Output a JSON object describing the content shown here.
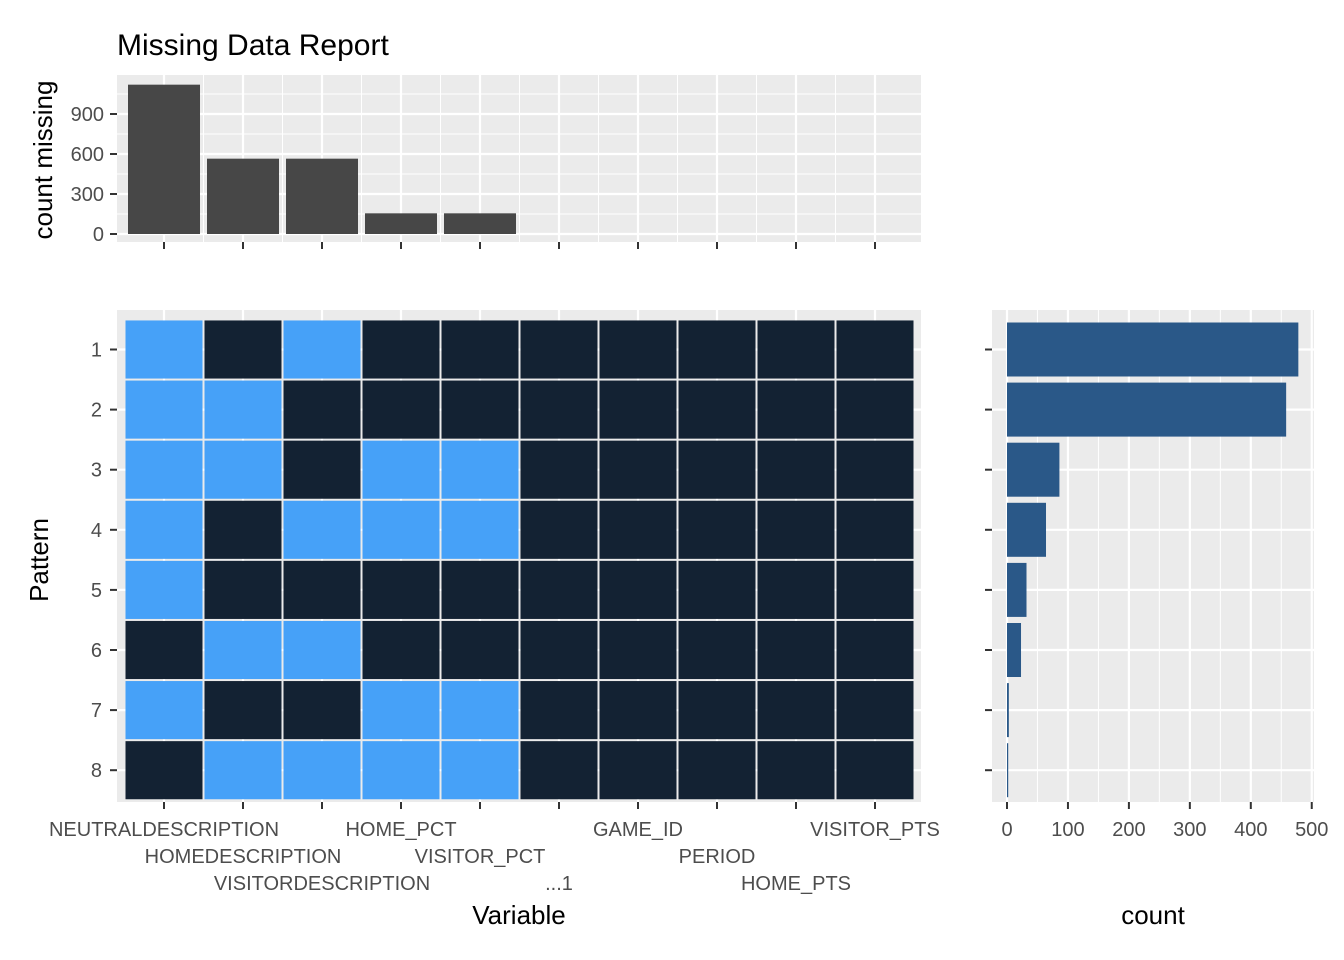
{
  "chart_data": {
    "title": "Missing Data Report",
    "variables": [
      "NEUTRALDESCRIPTION",
      "HOMEDESCRIPTION",
      "VISITORDESCRIPTION",
      "HOME_PCT",
      "VISITOR_PCT",
      "...1",
      "GAME_ID",
      "PERIOD",
      "HOME_PTS",
      "VISITOR_PTS"
    ],
    "colors": {
      "panel": "#ebebeb",
      "grid": "#ffffff",
      "bar_missing": "#474747",
      "tile_missing": "#46a1f8",
      "tile_present": "#132233",
      "pattern_bar": "#2a5888"
    },
    "missing_counts": {
      "type": "bar",
      "ylabel": "count missing",
      "yticks": [
        0,
        300,
        600,
        900
      ],
      "ylim": [
        0,
        1130
      ],
      "values": [
        1120,
        565,
        565,
        155,
        155,
        0,
        0,
        0,
        0,
        0
      ]
    },
    "patterns": {
      "type": "heatmap",
      "xlabel": "Variable",
      "ylabel": "Pattern",
      "pattern_labels": [
        "1",
        "2",
        "3",
        "4",
        "5",
        "6",
        "7",
        "8"
      ],
      "matrix": [
        [
          1,
          0,
          1,
          0,
          0,
          0,
          0,
          0,
          0,
          0
        ],
        [
          1,
          1,
          0,
          0,
          0,
          0,
          0,
          0,
          0,
          0
        ],
        [
          1,
          1,
          0,
          1,
          1,
          0,
          0,
          0,
          0,
          0
        ],
        [
          1,
          0,
          1,
          1,
          1,
          0,
          0,
          0,
          0,
          0
        ],
        [
          1,
          0,
          0,
          0,
          0,
          0,
          0,
          0,
          0,
          0
        ],
        [
          0,
          1,
          1,
          0,
          0,
          0,
          0,
          0,
          0,
          0
        ],
        [
          1,
          0,
          0,
          1,
          1,
          0,
          0,
          0,
          0,
          0
        ],
        [
          0,
          1,
          1,
          1,
          1,
          0,
          0,
          0,
          0,
          0
        ]
      ]
    },
    "pattern_counts": {
      "type": "bar",
      "orientation": "horizontal",
      "xlabel": "count",
      "xticks": [
        0,
        100,
        200,
        300,
        400,
        500
      ],
      "xlim": [
        -30,
        510
      ],
      "values": [
        478,
        458,
        86,
        64,
        32,
        23,
        3,
        2
      ]
    }
  }
}
